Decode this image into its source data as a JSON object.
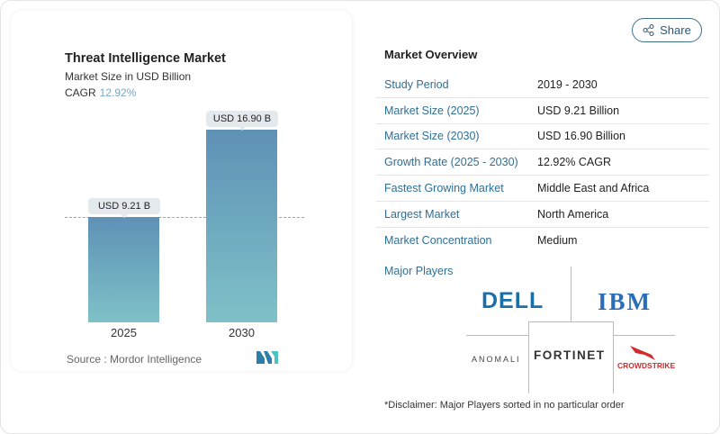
{
  "chart_card": {
    "title": "Threat Intelligence Market",
    "subtitle": "Market Size in USD Billion",
    "cagr_label": "CAGR",
    "cagr_value": "12.92%",
    "source": "Source :  Mordor Intelligence"
  },
  "chart_data": {
    "type": "bar",
    "categories": [
      "2025",
      "2030"
    ],
    "values": [
      9.21,
      16.9
    ],
    "data_labels": [
      "USD 9.21 B",
      "USD 16.90 B"
    ],
    "title": "Threat Intelligence Market",
    "ylabel": "Market Size in USD Billion",
    "ylim": [
      0,
      16.9
    ],
    "grid": false,
    "colors": [
      "#5f91b6",
      "#7fc1c8"
    ]
  },
  "share": {
    "label": "Share",
    "icon": "share-icon"
  },
  "overview": {
    "title": "Market Overview",
    "rows": [
      {
        "label": "Study Period",
        "value": "2019 - 2030"
      },
      {
        "label": "Market Size (2025)",
        "value": "USD 9.21 Billion"
      },
      {
        "label": "Market Size (2030)",
        "value": "USD 16.90 Billion"
      },
      {
        "label": "Growth Rate (2025 - 2030)",
        "value": "12.92% CAGR"
      },
      {
        "label": "Fastest Growing Market",
        "value": "Middle East and Africa"
      },
      {
        "label": "Largest Market",
        "value": "North America"
      },
      {
        "label": "Market Concentration",
        "value": "Medium"
      }
    ]
  },
  "players": {
    "title": "Major Players",
    "logos": [
      "DELL",
      "IBM",
      "ANOMALI",
      "FORTINET",
      "CROWDSTRIKE"
    ]
  },
  "disclaimer": "*Disclaimer: Major Players sorted in no particular order"
}
